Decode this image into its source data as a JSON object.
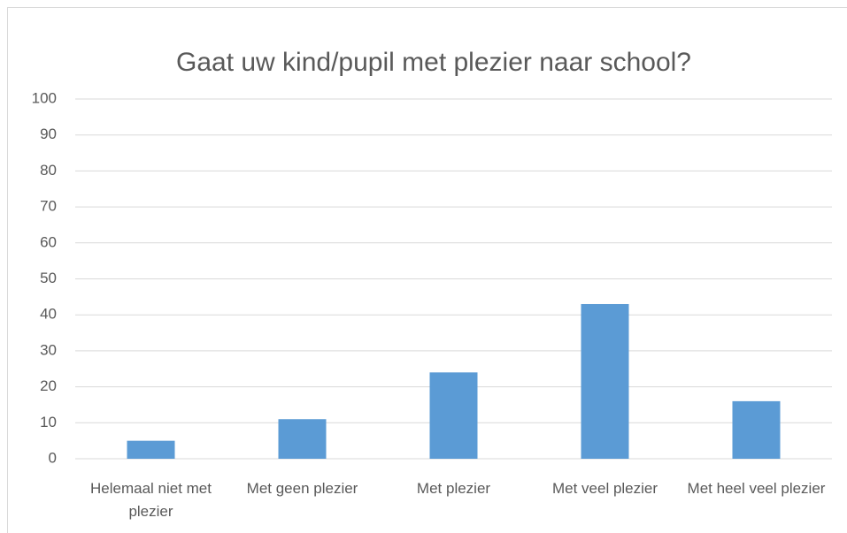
{
  "chart_data": {
    "type": "bar",
    "title": "Gaat uw kind/pupil met plezier naar school?",
    "categories": [
      "Helemaal niet met plezier",
      "Met geen plezier",
      "Met plezier",
      "Met veel plezier",
      "Met heel veel plezier"
    ],
    "values": [
      5,
      11,
      24,
      43,
      16
    ],
    "color": "#5b9bd5",
    "ylim": [
      0,
      100
    ],
    "yticks": [
      0,
      10,
      20,
      30,
      40,
      50,
      60,
      70,
      80,
      90,
      100
    ],
    "grid": true
  }
}
